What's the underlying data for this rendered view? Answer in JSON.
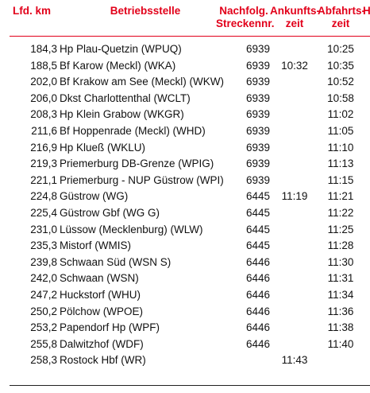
{
  "header": {
    "km": "Lfd. km",
    "station": "Betriebsstelle",
    "route_line1": "Nachfolg.",
    "route_line2": "Streckennr.",
    "arr_line1": "Ankunfts-",
    "arr_line2": "zeit",
    "dep_line1": "Abfahrts-",
    "dep_line2": "zeit",
    "extra": "H"
  },
  "rows": [
    {
      "km": "184,3",
      "station": "Hp Plau-Quetzin (WPUQ)",
      "route": "6939",
      "arr": "",
      "dep": "10:25"
    },
    {
      "km": "188,5",
      "station": "Bf Karow (Meckl) (WKA)",
      "route": "6939",
      "arr": "10:32",
      "dep": "10:35"
    },
    {
      "km": "202,0",
      "station": "Bf Krakow am See (Meckl) (WKW)",
      "route": "6939",
      "arr": "",
      "dep": "10:52"
    },
    {
      "km": "206,0",
      "station": "Dkst Charlottenthal (WCLT)",
      "route": "6939",
      "arr": "",
      "dep": "10:58"
    },
    {
      "km": "208,3",
      "station": "Hp Klein Grabow (WKGR)",
      "route": "6939",
      "arr": "",
      "dep": "11:02"
    },
    {
      "km": "211,6",
      "station": "Bf Hoppenrade (Meckl) (WHD)",
      "route": "6939",
      "arr": "",
      "dep": "11:05"
    },
    {
      "km": "216,9",
      "station": "Hp Klueß (WKLU)",
      "route": "6939",
      "arr": "",
      "dep": "11:10"
    },
    {
      "km": "219,3",
      "station": "Priemerburg DB-Grenze (WPIG)",
      "route": "6939",
      "arr": "",
      "dep": "11:13"
    },
    {
      "km": "221,1",
      "station": "Priemerburg - NUP Güstrow (WPI)",
      "route": "6939",
      "arr": "",
      "dep": "11:15"
    },
    {
      "km": "224,8",
      "station": "Güstrow (WG)",
      "route": "6445",
      "arr": "11:19",
      "dep": "11:21"
    },
    {
      "km": "225,4",
      "station": "Güstrow Gbf (WG G)",
      "route": "6445",
      "arr": "",
      "dep": "11:22"
    },
    {
      "km": "231,0",
      "station": "Lüssow (Mecklenburg) (WLW)",
      "route": "6445",
      "arr": "",
      "dep": "11:25"
    },
    {
      "km": "235,3",
      "station": "Mistorf (WMIS)",
      "route": "6445",
      "arr": "",
      "dep": "11:28"
    },
    {
      "km": "239,8",
      "station": "Schwaan Süd (WSN S)",
      "route": "6446",
      "arr": "",
      "dep": "11:30"
    },
    {
      "km": "242,0",
      "station": "Schwaan (WSN)",
      "route": "6446",
      "arr": "",
      "dep": "11:31"
    },
    {
      "km": "247,2",
      "station": "Huckstorf (WHU)",
      "route": "6446",
      "arr": "",
      "dep": "11:34"
    },
    {
      "km": "250,2",
      "station": "Pölchow (WPOE)",
      "route": "6446",
      "arr": "",
      "dep": "11:36"
    },
    {
      "km": "253,2",
      "station": "Papendorf Hp (WPF)",
      "route": "6446",
      "arr": "",
      "dep": "11:38"
    },
    {
      "km": "255,8",
      "station": "Dalwitzhof (WDF)",
      "route": "6446",
      "arr": "",
      "dep": "11:40"
    },
    {
      "km": "258,3",
      "station": "Rostock Hbf (WR)",
      "route": "",
      "arr": "11:43",
      "dep": ""
    }
  ]
}
